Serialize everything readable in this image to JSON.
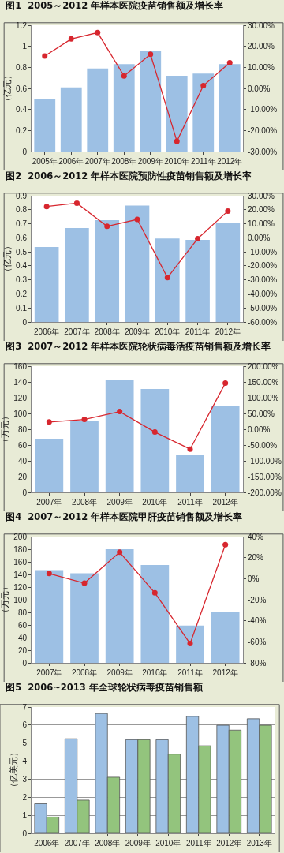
{
  "chart_data": [
    {
      "type": "bar",
      "title": "图1  2005～2012 年样本医院疫苗销售额及增长率",
      "ylabel": "（亿元）",
      "categories": [
        "2005年",
        "2006年",
        "2007年",
        "2008年",
        "2009年",
        "2010年",
        "2011年",
        "2012年"
      ],
      "series": [
        {
          "color": "#9dc0e4",
          "values": [
            0.5,
            0.61,
            0.79,
            0.83,
            0.96,
            0.72,
            0.74,
            0.83
          ]
        },
        {
          "type": "line",
          "axis": "y2",
          "color": "#d7262e",
          "values": [
            15.4,
            23.5,
            26.5,
            5.9,
            16.2,
            -25.1,
            1.3,
            12.2
          ]
        }
      ],
      "ylim": [
        0,
        1.2
      ],
      "yticks": [
        0,
        0.2,
        0.4,
        0.6,
        0.8,
        1,
        1.2
      ],
      "y2lim": [
        -30,
        30
      ],
      "y2ticks": [
        {
          "value": -30,
          "label": "-30.00%"
        },
        {
          "value": -20,
          "label": "-20.00%"
        },
        {
          "value": -10,
          "label": "-10.00%"
        },
        {
          "value": 0,
          "label": "0.00%"
        },
        {
          "value": 10,
          "label": "10.00%"
        },
        {
          "value": 20,
          "label": "20.00%"
        },
        {
          "value": 30,
          "label": "30.00%"
        }
      ],
      "marker": "circle",
      "grid": false
    },
    {
      "type": "bar",
      "title": "图2  2006～2012 年样本医院预防性疫苗销售额及增长率",
      "ylabel": "（亿元）",
      "categories": [
        "2006年",
        "2007年",
        "2008年",
        "2009年",
        "2010年",
        "2011年",
        "2012年"
      ],
      "series": [
        {
          "color": "#9dc0e4",
          "values": [
            0.535,
            0.67,
            0.725,
            0.83,
            0.595,
            0.585,
            0.705
          ]
        },
        {
          "type": "line",
          "axis": "y2",
          "color": "#d7262e",
          "values": [
            22.3,
            24.7,
            8.2,
            13.1,
            -28.4,
            -0.6,
            19.1
          ]
        }
      ],
      "ylim": [
        0,
        0.9
      ],
      "yticks": [
        0,
        0.1,
        0.2,
        0.3,
        0.4,
        0.5,
        0.6,
        0.7,
        0.8,
        0.9
      ],
      "y2lim": [
        -60,
        30
      ],
      "y2ticks": [
        {
          "value": -60,
          "label": "-60.00%"
        },
        {
          "value": -50,
          "label": "-50.00%"
        },
        {
          "value": -40,
          "label": "-40.00%"
        },
        {
          "value": -30,
          "label": "-30.00%"
        },
        {
          "value": -20,
          "label": "-20.00%"
        },
        {
          "value": -10,
          "label": "-10.00%"
        },
        {
          "value": 0,
          "label": "0.00%"
        },
        {
          "value": 10,
          "label": "10.00%"
        },
        {
          "value": 20,
          "label": "20.00%"
        },
        {
          "value": 30,
          "label": "30.00%"
        }
      ],
      "marker": "circle",
      "grid": false
    },
    {
      "type": "bar",
      "title": "图3  2007～2012 年样本医院轮状病毒活疫苗销售额及增长率",
      "ylabel": "（万元）",
      "categories": [
        "2007年",
        "2008年",
        "2009年",
        "2010年",
        "2011年",
        "2012年"
      ],
      "series": [
        {
          "color": "#9dc0e4",
          "values": [
            68,
            91,
            142,
            131,
            47,
            109
          ]
        },
        {
          "type": "line",
          "axis": "y2",
          "color": "#d7262e",
          "values": [
            23,
            31,
            56,
            -9,
            -63,
            146
          ]
        }
      ],
      "ylim": [
        0,
        160
      ],
      "yticks": [
        0,
        20,
        40,
        60,
        80,
        100,
        120,
        140,
        160
      ],
      "y2lim": [
        -200,
        200
      ],
      "y2ticks": [
        {
          "value": -200,
          "label": "-200.00%"
        },
        {
          "value": -150,
          "label": "-150.00%"
        },
        {
          "value": -100,
          "label": "-100.00%"
        },
        {
          "value": -50,
          "label": "-50.00%"
        },
        {
          "value": 0,
          "label": "0.00%"
        },
        {
          "value": 50,
          "label": "50.00%"
        },
        {
          "value": 100,
          "label": "100.00%"
        },
        {
          "value": 150,
          "label": "150.00%"
        },
        {
          "value": 200,
          "label": "200.00%"
        }
      ],
      "marker": "circle",
      "grid": false
    },
    {
      "type": "bar",
      "title": "图4  2007～2012 年样本医院甲肝疫苗销售额及增长率",
      "ylabel": "（万元）",
      "categories": [
        "2007年",
        "2008年",
        "2009年",
        "2010年",
        "2011年",
        "2012年"
      ],
      "series": [
        {
          "color": "#9dc0e4",
          "values": [
            147,
            142,
            180,
            155,
            59,
            80
          ]
        },
        {
          "type": "line",
          "axis": "y2",
          "color": "#d7262e",
          "values": [
            4.9,
            -4.3,
            25.1,
            -13.5,
            -61.7,
            32.3
          ]
        }
      ],
      "ylim": [
        0,
        200
      ],
      "yticks": [
        0,
        20,
        40,
        60,
        80,
        100,
        120,
        140,
        160,
        180,
        200
      ],
      "y2lim": [
        -80,
        40
      ],
      "y2ticks": [
        {
          "value": -80,
          "label": "-80%"
        },
        {
          "value": -60,
          "label": "-60%"
        },
        {
          "value": -40,
          "label": "-40%"
        },
        {
          "value": -20,
          "label": "-20%"
        },
        {
          "value": 0,
          "label": "0%"
        },
        {
          "value": 20,
          "label": "20%"
        },
        {
          "value": 40,
          "label": "40%"
        }
      ],
      "marker": "circle",
      "grid": false
    },
    {
      "type": "bar",
      "title": "图5  2006~2013 年全球轮状病毒疫苗销售额",
      "ylabel": "（亿美元）",
      "categories": [
        "2006年",
        "2007年",
        "2008年",
        "2009年",
        "2010年",
        "2011年",
        "2012年",
        "2013年"
      ],
      "series": [
        {
          "color": "#9dc0e4",
          "values": [
            1.64,
            5.24,
            6.64,
            5.19,
            5.19,
            6.48,
            5.99,
            6.35
          ]
        },
        {
          "color": "#93c47d",
          "values": [
            0.9,
            1.84,
            3.11,
            5.19,
            4.39,
            4.85,
            5.72,
            5.99
          ]
        }
      ],
      "ylim": [
        0,
        7
      ],
      "yticks": [
        0,
        1,
        2,
        3,
        4,
        5,
        6,
        7
      ],
      "grid": "y"
    }
  ]
}
